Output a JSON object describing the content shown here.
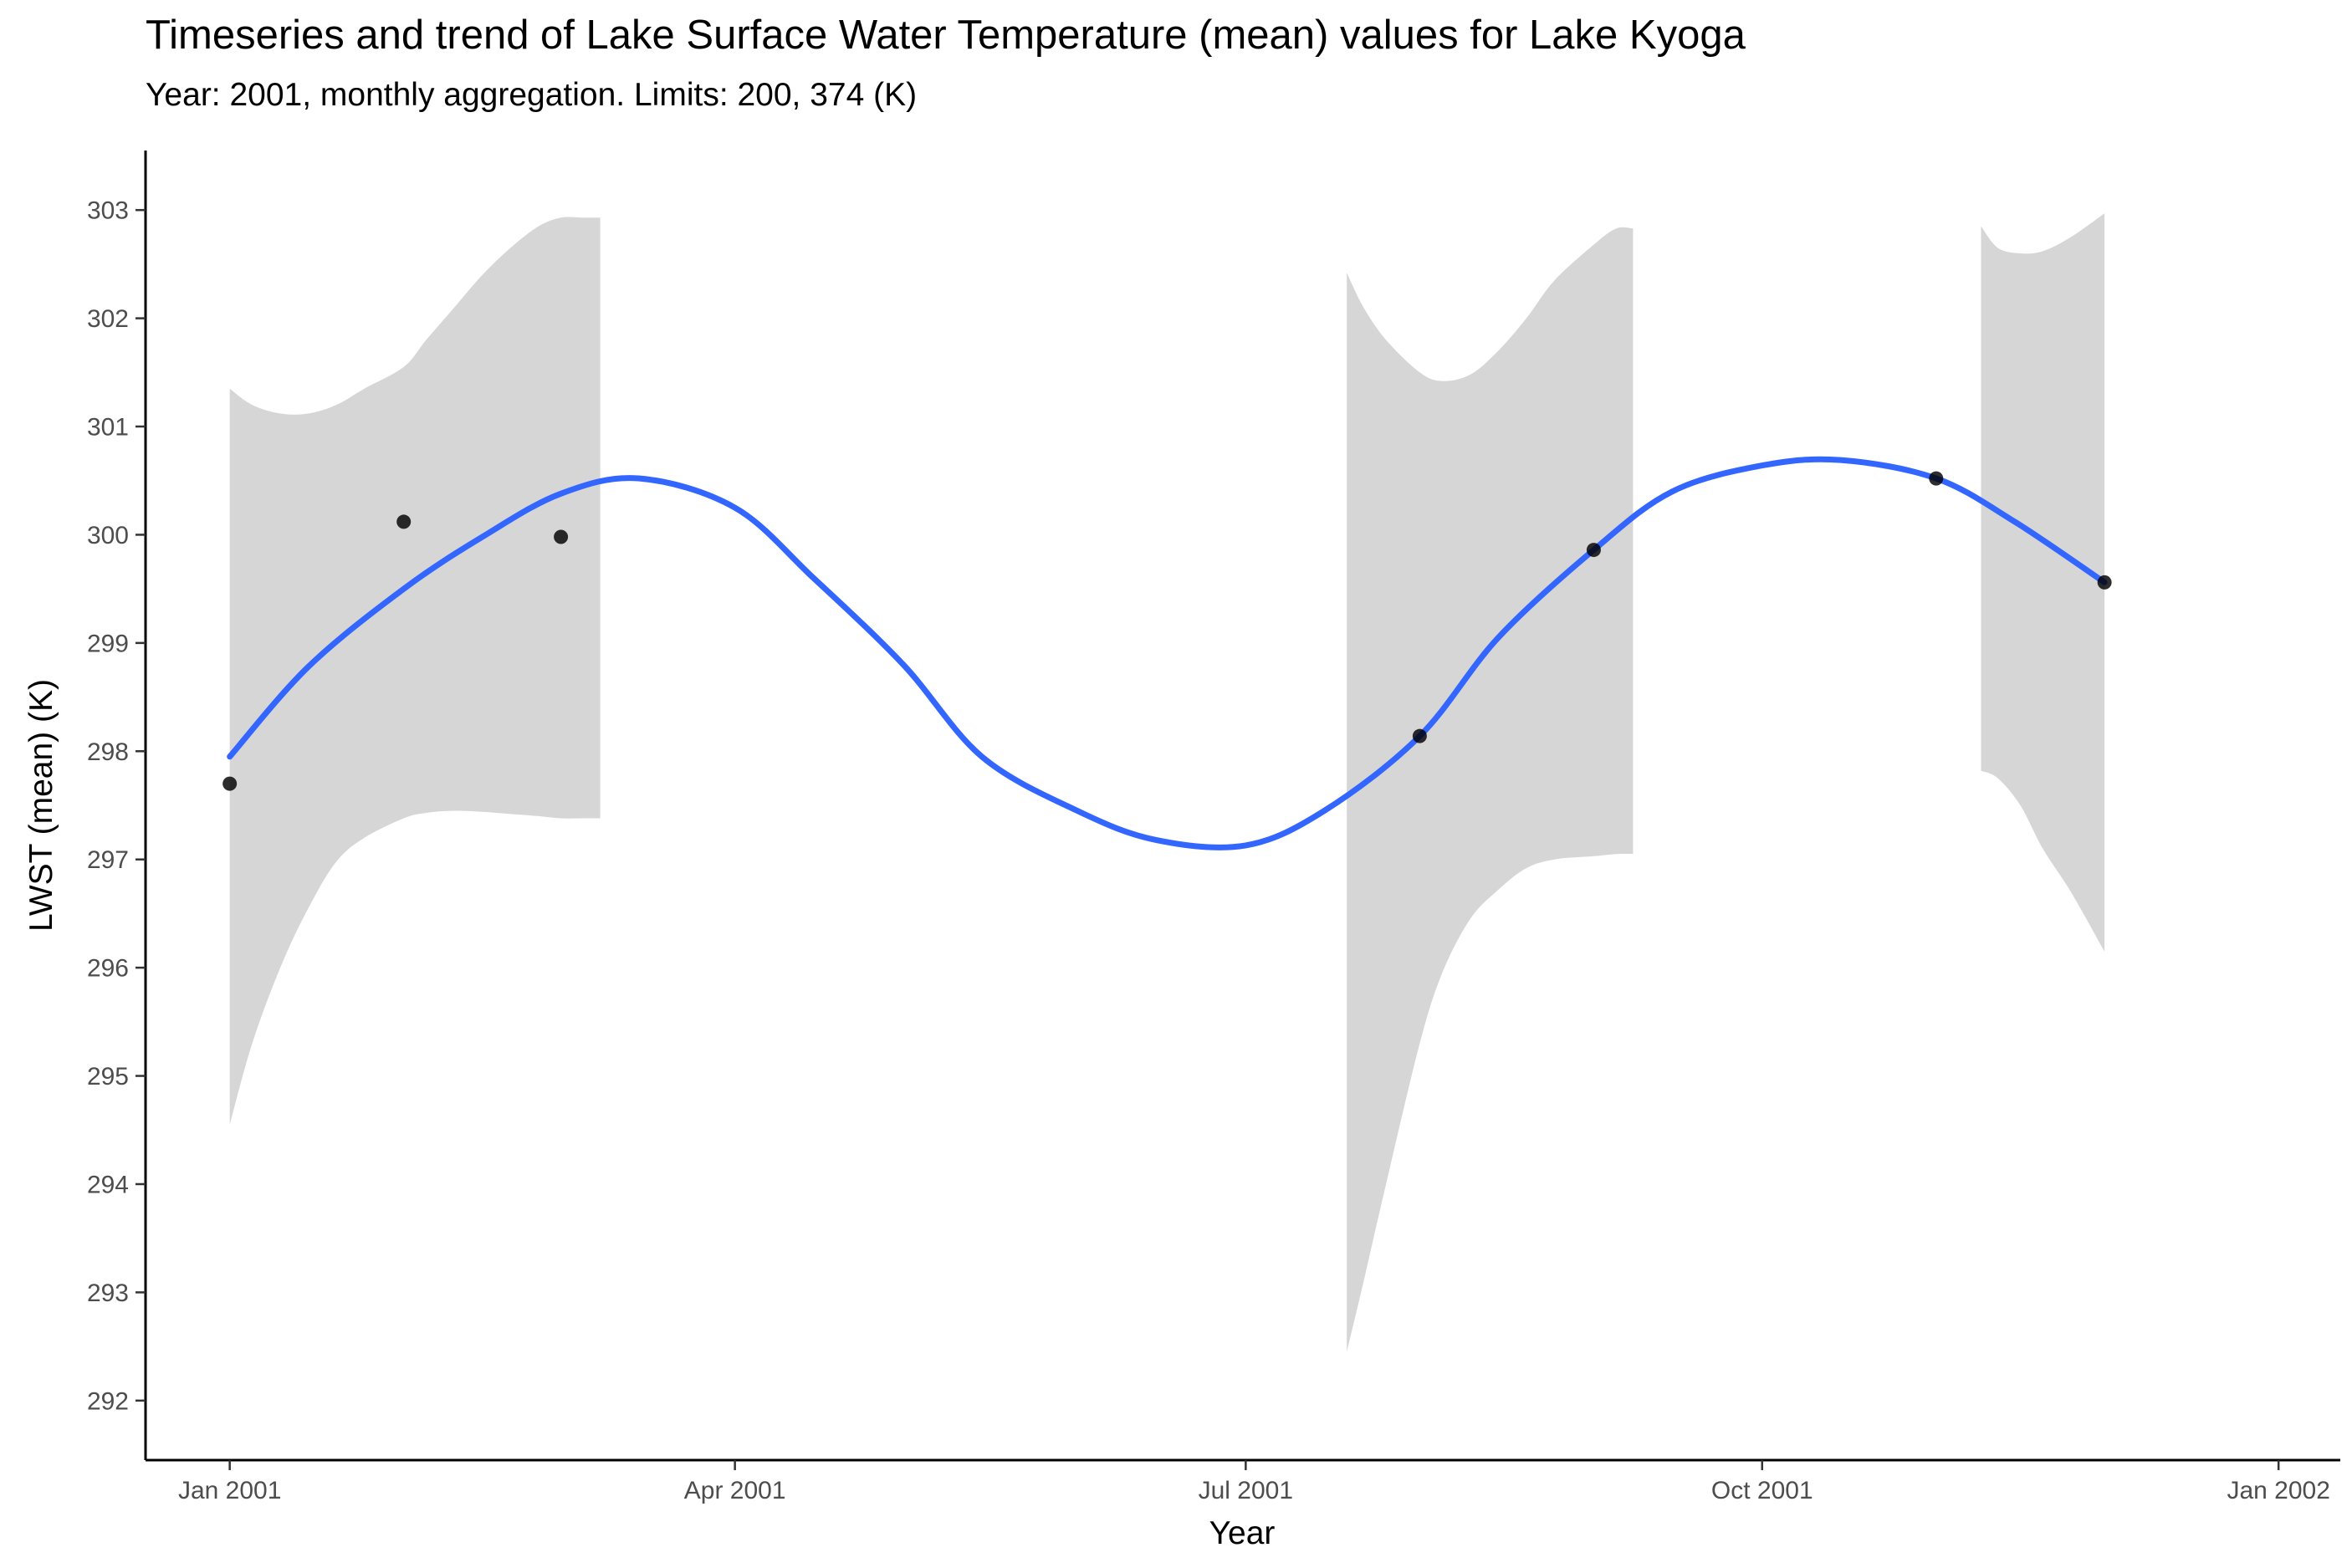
{
  "chart_data": {
    "type": "line",
    "title": "Timeseries and trend of Lake Surface Water Temperature (mean) values for Lake Kyoga",
    "subtitle": "Year: 2001, monthly aggregation. Limits: 200, 374 (K)",
    "xlabel": "Year",
    "ylabel": "LWST (mean) (K)",
    "xlim": [
      "2000-12-17",
      "2002-01-12"
    ],
    "ylim": [
      291.45,
      303.55
    ],
    "x_ticks": [
      {
        "date": "2001-01-01",
        "label": "Jan 2001"
      },
      {
        "date": "2001-04-01",
        "label": "Apr 2001"
      },
      {
        "date": "2001-07-01",
        "label": "Jul 2001"
      },
      {
        "date": "2001-10-01",
        "label": "Oct 2001"
      },
      {
        "date": "2002-01-01",
        "label": "Jan 2002"
      }
    ],
    "y_ticks": [
      292,
      293,
      294,
      295,
      296,
      297,
      298,
      299,
      300,
      301,
      302,
      303
    ],
    "grid": false,
    "legend": "none",
    "colors": {
      "trend": "#3366ff",
      "band": "#d6d6d6",
      "points": "#000000",
      "axis": "#000000",
      "tick_label": "#4d4d4d"
    },
    "series": [
      {
        "type": "scatter",
        "x": [
          "2001-01-01",
          "2001-02-01",
          "2001-03-01",
          "2001-08-01",
          "2001-09-01",
          "2001-11-01",
          "2001-12-01"
        ],
        "y": [
          297.7,
          300.12,
          299.98,
          298.14,
          299.86,
          300.52,
          299.56
        ]
      },
      {
        "type": "line",
        "x": [
          "2001-01-01",
          "2001-01-15",
          "2001-02-01",
          "2001-02-15",
          "2001-03-01",
          "2001-03-15",
          "2001-04-01",
          "2001-04-15",
          "2001-05-01",
          "2001-05-15",
          "2001-06-01",
          "2001-06-15",
          "2001-07-01",
          "2001-07-15",
          "2001-08-01",
          "2001-08-15",
          "2001-09-01",
          "2001-09-15",
          "2001-10-01",
          "2001-10-15",
          "2001-11-01",
          "2001-11-15",
          "2001-12-01"
        ],
        "y": [
          297.95,
          298.78,
          299.5,
          299.98,
          300.38,
          300.52,
          300.25,
          299.6,
          298.8,
          297.95,
          297.45,
          297.18,
          297.13,
          297.45,
          298.14,
          299.05,
          299.86,
          300.4,
          300.64,
          300.69,
          300.52,
          300.12,
          299.56
        ]
      }
    ],
    "confidence_band": [
      {
        "x": [
          "2001-01-01",
          "2001-01-05",
          "2001-01-10",
          "2001-01-15",
          "2001-01-20",
          "2001-01-25",
          "2001-02-01",
          "2001-02-05",
          "2001-02-10",
          "2001-02-15",
          "2001-02-20",
          "2001-02-25",
          "2001-03-01",
          "2001-03-05",
          "2001-03-08"
        ],
        "upper": [
          301.35,
          301.2,
          301.12,
          301.12,
          301.2,
          301.35,
          301.55,
          301.8,
          302.1,
          302.4,
          302.65,
          302.85,
          302.93,
          302.93,
          302.93
        ],
        "lower": [
          294.55,
          295.3,
          296.0,
          296.55,
          296.98,
          297.2,
          297.38,
          297.43,
          297.45,
          297.44,
          297.42,
          297.4,
          297.38,
          297.38,
          297.38
        ]
      },
      {
        "x": [
          "2001-07-19",
          "2001-07-22",
          "2001-07-26",
          "2001-08-01",
          "2001-08-05",
          "2001-08-10",
          "2001-08-15",
          "2001-08-20",
          "2001-08-25",
          "2001-09-01",
          "2001-09-05",
          "2001-09-08"
        ],
        "upper": [
          302.42,
          302.1,
          301.8,
          301.5,
          301.42,
          301.48,
          301.7,
          302.0,
          302.35,
          302.68,
          302.83,
          302.83
        ],
        "lower": [
          292.45,
          293.1,
          294.0,
          295.3,
          295.95,
          296.45,
          296.72,
          296.92,
          297.0,
          297.03,
          297.05,
          297.05
        ]
      },
      {
        "x": [
          "2001-11-09",
          "2001-11-12",
          "2001-11-16",
          "2001-11-20",
          "2001-11-25",
          "2001-12-01"
        ],
        "upper": [
          302.85,
          302.65,
          302.6,
          302.62,
          302.75,
          302.97
        ],
        "lower": [
          297.82,
          297.75,
          297.5,
          297.1,
          296.7,
          296.15
        ]
      }
    ]
  }
}
